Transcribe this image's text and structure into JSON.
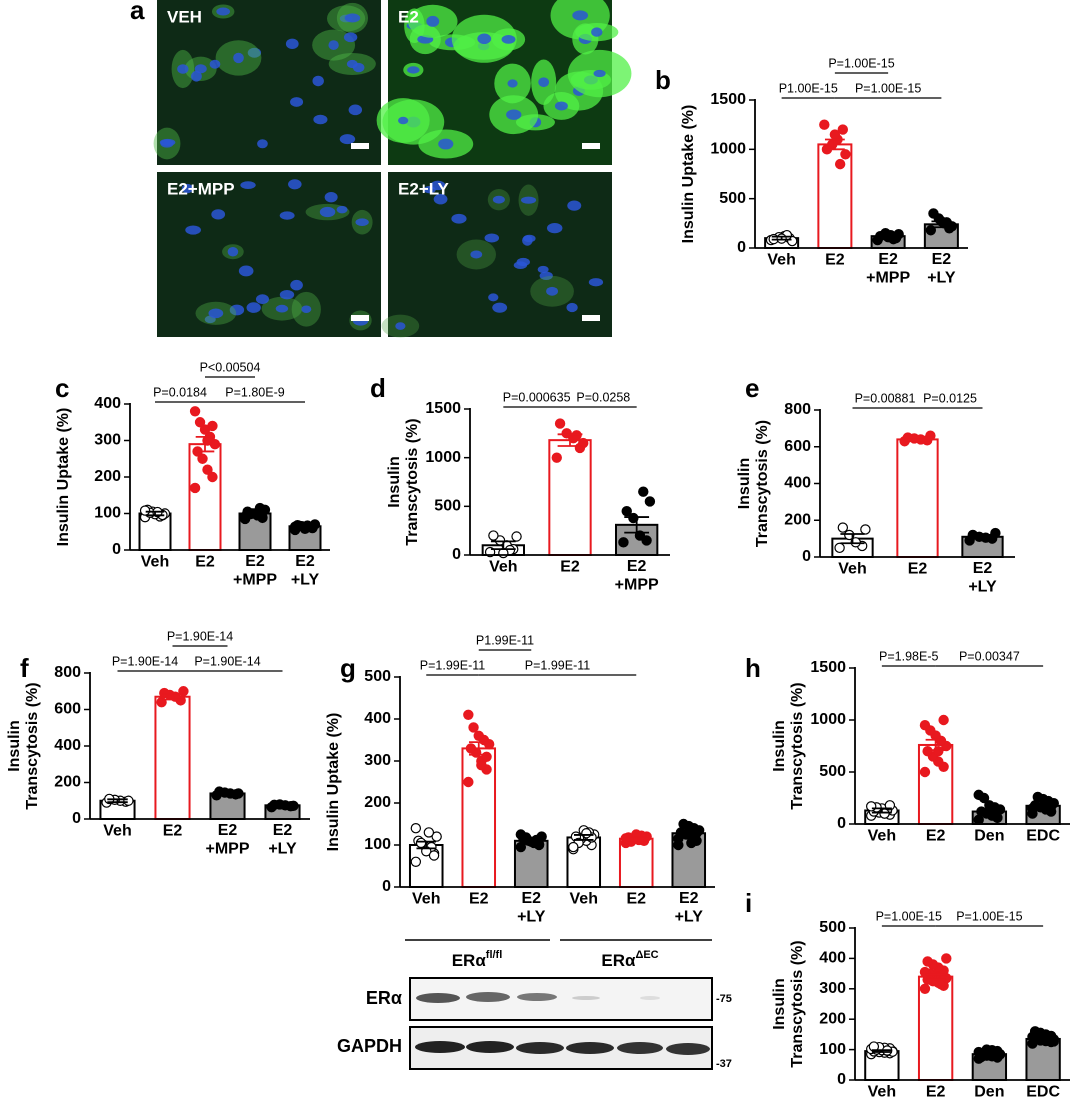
{
  "microscopy": {
    "panel": "a",
    "images": [
      {
        "label": "VEH"
      },
      {
        "label": "E2"
      },
      {
        "label": "E2+MPP"
      },
      {
        "label": "E2+LY"
      }
    ]
  },
  "chart_data": [
    {
      "type": "bar",
      "panel": "b",
      "ylabel": "Insulin Uptake (%)",
      "categories": [
        "Veh",
        "E2",
        "E2\n+MPP",
        "E2\n+LY"
      ],
      "values": [
        100,
        1050,
        120,
        240
      ],
      "errors": [
        15,
        50,
        15,
        30
      ],
      "points": [
        [
          80,
          100,
          120,
          110,
          90,
          70,
          130,
          95
        ],
        [
          1250,
          1200,
          1100,
          1050,
          1000,
          950,
          850,
          1150
        ],
        [
          80,
          100,
          130,
          150,
          120,
          140,
          90,
          110
        ],
        [
          180,
          200,
          250,
          300,
          350,
          220,
          260,
          270
        ]
      ],
      "bar_colors": [
        "#ffffff",
        "#ffffff",
        "#9a9a9a",
        "#9a9a9a"
      ],
      "edge_colors": [
        "#000000",
        "#e8191f",
        "#000000",
        "#000000"
      ],
      "point_colors": [
        "#ffffff",
        "#e8191f",
        "#000000",
        "#000000"
      ],
      "ylim": [
        0,
        1500
      ],
      "yticks": [
        0,
        500,
        1000,
        1500
      ],
      "comparisons": [
        {
          "between": [
            0,
            1
          ],
          "label": "P1.00E-15"
        },
        {
          "between": [
            1,
            3
          ],
          "label": "P=1.00E-15"
        },
        {
          "between": [
            1,
            2
          ],
          "label": "P=1.00E-15"
        }
      ]
    },
    {
      "type": "bar",
      "panel": "c",
      "ylabel": "Insulin Uptake (%)",
      "categories": [
        "Veh",
        "E2",
        "E2\n+MPP",
        "E2\n+LY"
      ],
      "values": [
        100,
        290,
        100,
        65
      ],
      "errors": [
        5,
        20,
        5,
        3
      ],
      "points": [
        [
          90,
          95,
          100,
          105,
          110,
          100,
          92,
          98,
          102,
          108,
          96,
          104
        ],
        [
          170,
          200,
          220,
          250,
          270,
          290,
          310,
          330,
          350,
          380,
          340,
          300
        ],
        [
          85,
          90,
          95,
          100,
          105,
          110,
          115,
          100,
          98,
          92,
          88,
          102
        ],
        [
          55,
          60,
          62,
          65,
          68,
          70,
          63,
          58,
          66,
          64,
          61,
          67
        ]
      ],
      "bar_colors": [
        "#ffffff",
        "#ffffff",
        "#9a9a9a",
        "#9a9a9a"
      ],
      "edge_colors": [
        "#000000",
        "#e8191f",
        "#000000",
        "#000000"
      ],
      "point_colors": [
        "#ffffff",
        "#e8191f",
        "#000000",
        "#000000"
      ],
      "ylim": [
        0,
        400
      ],
      "yticks": [
        0,
        100,
        200,
        300,
        400
      ],
      "comparisons": [
        {
          "between": [
            0,
            1
          ],
          "label": "P=0.0184"
        },
        {
          "between": [
            1,
            3
          ],
          "label": "P=1.80E-9"
        },
        {
          "between": [
            1,
            2
          ],
          "label": "P<0.00504"
        }
      ]
    },
    {
      "type": "bar",
      "panel": "d",
      "ylabel": "Insulin\nTranscytosis (%)",
      "categories": [
        "Veh",
        "E2",
        "E2\n+MPP"
      ],
      "values": [
        100,
        1180,
        310
      ],
      "errors": [
        40,
        60,
        80
      ],
      "points": [
        [
          30,
          60,
          100,
          150,
          200,
          190,
          50,
          20
        ],
        [
          1000,
          1100,
          1200,
          1250,
          1350,
          1150,
          1230
        ],
        [
          130,
          150,
          200,
          380,
          450,
          550,
          650
        ]
      ],
      "bar_colors": [
        "#ffffff",
        "#ffffff",
        "#9a9a9a"
      ],
      "edge_colors": [
        "#000000",
        "#e8191f",
        "#000000"
      ],
      "point_colors": [
        "#ffffff",
        "#e8191f",
        "#000000"
      ],
      "ylim": [
        0,
        1500
      ],
      "yticks": [
        0,
        500,
        1000,
        1500
      ],
      "comparisons": [
        {
          "between": [
            0,
            1
          ],
          "label": "P=0.000635"
        },
        {
          "between": [
            1,
            2
          ],
          "label": "P=0.0258"
        }
      ]
    },
    {
      "type": "bar",
      "panel": "e",
      "ylabel": "Insulin\nTranscytosis (%)",
      "categories": [
        "Veh",
        "E2",
        "E2\n+LY"
      ],
      "values": [
        100,
        640,
        110
      ],
      "errors": [
        25,
        8,
        10
      ],
      "points": [
        [
          50,
          60,
          80,
          120,
          160,
          150
        ],
        [
          630,
          635,
          640,
          645,
          650,
          660
        ],
        [
          90,
          100,
          105,
          110,
          120,
          130
        ]
      ],
      "bar_colors": [
        "#ffffff",
        "#ffffff",
        "#9a9a9a"
      ],
      "edge_colors": [
        "#000000",
        "#e8191f",
        "#000000"
      ],
      "point_colors": [
        "#ffffff",
        "#e8191f",
        "#000000"
      ],
      "ylim": [
        0,
        800
      ],
      "yticks": [
        0,
        200,
        400,
        600,
        800
      ],
      "comparisons": [
        {
          "between": [
            0,
            1
          ],
          "label": "P=0.00881"
        },
        {
          "between": [
            1,
            2
          ],
          "label": "P=0.0125"
        }
      ]
    },
    {
      "type": "bar",
      "panel": "f",
      "ylabel": "Insulin\nTranscytosis (%)",
      "categories": [
        "Veh",
        "E2",
        "E2\n+MPP",
        "E2\n+LY"
      ],
      "values": [
        100,
        670,
        140,
        75
      ],
      "errors": [
        8,
        15,
        5,
        4
      ],
      "points": [
        [
          90,
          95,
          100,
          105,
          110,
          100
        ],
        [
          640,
          650,
          670,
          680,
          690,
          700
        ],
        [
          130,
          135,
          140,
          145,
          150,
          140
        ],
        [
          65,
          70,
          75,
          80,
          78,
          72
        ]
      ],
      "bar_colors": [
        "#ffffff",
        "#ffffff",
        "#9a9a9a",
        "#9a9a9a"
      ],
      "edge_colors": [
        "#000000",
        "#e8191f",
        "#000000",
        "#000000"
      ],
      "point_colors": [
        "#ffffff",
        "#e8191f",
        "#000000",
        "#000000"
      ],
      "ylim": [
        0,
        800
      ],
      "yticks": [
        0,
        200,
        400,
        600,
        800
      ],
      "comparisons": [
        {
          "between": [
            0,
            1
          ],
          "label": "P=1.90E-14"
        },
        {
          "between": [
            1,
            3
          ],
          "label": "P=1.90E-14"
        },
        {
          "between": [
            1,
            2
          ],
          "label": "P=1.90E-14"
        }
      ]
    },
    {
      "type": "bar",
      "panel": "g",
      "ylabel": "Insulin Uptake (%)",
      "categories": [
        "Veh",
        "E2",
        "E2\n+LY",
        "Veh",
        "E2",
        "E2\n+LY"
      ],
      "values": [
        100,
        330,
        110,
        118,
        115,
        128
      ],
      "errors": [
        8,
        15,
        6,
        6,
        4,
        6
      ],
      "points": [
        [
          60,
          80,
          90,
          100,
          110,
          120,
          95,
          85,
          105,
          140,
          75,
          130
        ],
        [
          250,
          280,
          300,
          320,
          330,
          340,
          350,
          360,
          380,
          410,
          310,
          290
        ],
        [
          95,
          100,
          105,
          110,
          115,
          120,
          112,
          108,
          118,
          125,
          102
        ],
        [
          90,
          100,
          110,
          115,
          120,
          125,
          130,
          135,
          105,
          95,
          118,
          128
        ],
        [
          105,
          110,
          112,
          115,
          118,
          120,
          122,
          125,
          108,
          116
        ],
        [
          100,
          110,
          120,
          125,
          130,
          135,
          140,
          145,
          150,
          115,
          128,
          105
        ]
      ],
      "bar_colors": [
        "#ffffff",
        "#ffffff",
        "#9a9a9a",
        "#ffffff",
        "#ffffff",
        "#9a9a9a"
      ],
      "edge_colors": [
        "#000000",
        "#e8191f",
        "#000000",
        "#000000",
        "#e8191f",
        "#000000"
      ],
      "point_colors": [
        "#ffffff",
        "#e8191f",
        "#000000",
        "#ffffff",
        "#e8191f",
        "#000000"
      ],
      "ylim": [
        0,
        500
      ],
      "yticks": [
        0,
        100,
        200,
        300,
        400,
        500
      ],
      "comparisons": [
        {
          "between": [
            1,
            4
          ],
          "label": "P=1.99E-11"
        },
        {
          "between": [
            1,
            2
          ],
          "label": "P1.99E-11"
        },
        {
          "between": [
            0,
            1
          ],
          "label": "P=1.99E-11"
        }
      ]
    },
    {
      "type": "bar",
      "panel": "h",
      "ylabel": "Insulin\nTranscytosis (%)",
      "categories": [
        "Veh",
        "E2",
        "Den",
        "EDC"
      ],
      "values": [
        130,
        760,
        120,
        175
      ],
      "errors": [
        20,
        50,
        25,
        20
      ],
      "points": [
        [
          80,
          90,
          100,
          110,
          120,
          130,
          140,
          150,
          160,
          170,
          180,
          100
        ],
        [
          500,
          550,
          600,
          650,
          700,
          750,
          800,
          850,
          900,
          950,
          1000,
          700
        ],
        [
          40,
          60,
          80,
          100,
          120,
          140,
          160,
          180,
          250,
          280,
          60,
          90
        ],
        [
          100,
          120,
          140,
          160,
          180,
          200,
          220,
          240,
          260,
          150,
          170,
          190
        ]
      ],
      "bar_colors": [
        "#ffffff",
        "#ffffff",
        "#9a9a9a",
        "#9a9a9a"
      ],
      "edge_colors": [
        "#000000",
        "#e8191f",
        "#000000",
        "#000000"
      ],
      "point_colors": [
        "#ffffff",
        "#e8191f",
        "#000000",
        "#000000"
      ],
      "ylim": [
        0,
        1500
      ],
      "yticks": [
        0,
        500,
        1000,
        1500
      ],
      "comparisons": [
        {
          "between": [
            0,
            1
          ],
          "label": "P=1.98E-5"
        },
        {
          "between": [
            1,
            3
          ],
          "label": "P=0.00347"
        }
      ]
    },
    {
      "type": "bar",
      "panel": "i",
      "ylabel": "Insulin\nTranscytosis (%)",
      "categories": [
        "Veh",
        "E2",
        "Den",
        "EDC"
      ],
      "values": [
        95,
        340,
        85,
        135
      ],
      "errors": [
        3,
        8,
        3,
        3
      ],
      "points": [
        [
          85,
          88,
          90,
          92,
          94,
          95,
          96,
          98,
          100,
          102,
          104,
          106,
          108,
          110,
          93,
          97
        ],
        [
          300,
          310,
          320,
          325,
          330,
          335,
          340,
          345,
          350,
          355,
          360,
          370,
          380,
          390,
          400,
          315
        ],
        [
          70,
          74,
          78,
          80,
          82,
          84,
          86,
          88,
          90,
          92,
          95,
          98,
          100,
          76,
          85,
          89
        ],
        [
          120,
          125,
          128,
          130,
          132,
          134,
          136,
          138,
          140,
          142,
          145,
          150,
          155,
          160,
          127,
          133
        ]
      ],
      "bar_colors": [
        "#ffffff",
        "#ffffff",
        "#9a9a9a",
        "#9a9a9a"
      ],
      "edge_colors": [
        "#000000",
        "#e8191f",
        "#000000",
        "#000000"
      ],
      "point_colors": [
        "#ffffff",
        "#e8191f",
        "#000000",
        "#000000"
      ],
      "ylim": [
        0,
        500
      ],
      "yticks": [
        0,
        100,
        200,
        300,
        400,
        500
      ],
      "comparisons": [
        {
          "between": [
            0,
            1
          ],
          "label": "P=1.00E-15"
        },
        {
          "between": [
            1,
            3
          ],
          "label": "P=1.00E-15"
        }
      ]
    }
  ],
  "blot": {
    "groups": [
      {
        "text": "ERα",
        "sup": "fl/fl"
      },
      {
        "text": "ERα",
        "sup": "ΔEC"
      }
    ],
    "rows": [
      {
        "label": "ERα",
        "marker": "-75"
      },
      {
        "label": "GAPDH",
        "marker": "-37"
      }
    ]
  }
}
